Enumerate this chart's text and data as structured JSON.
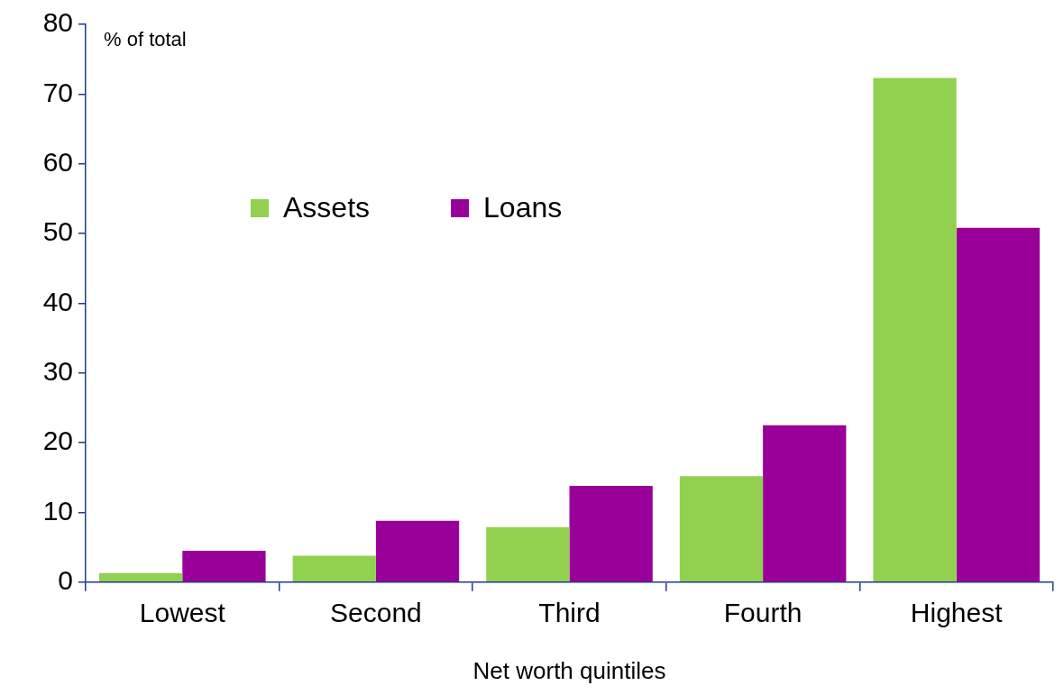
{
  "chart_data": {
    "type": "bar",
    "xlabel": "Net worth quintiles",
    "ylabel": "% of total",
    "categories": [
      "Lowest",
      "Second",
      "Third",
      "Fourth",
      "Highest"
    ],
    "series": [
      {
        "name": "Assets",
        "color": "#92d050",
        "values": [
          1.3,
          3.8,
          7.9,
          15.2,
          72.3
        ]
      },
      {
        "name": "Loans",
        "color": "#990099",
        "values": [
          4.5,
          8.8,
          13.8,
          22.5,
          50.8
        ]
      }
    ],
    "ylim": [
      0,
      80
    ],
    "yticks": [
      0,
      10,
      20,
      30,
      40,
      50,
      60,
      70,
      80
    ],
    "grid": false,
    "legend": "top left"
  }
}
